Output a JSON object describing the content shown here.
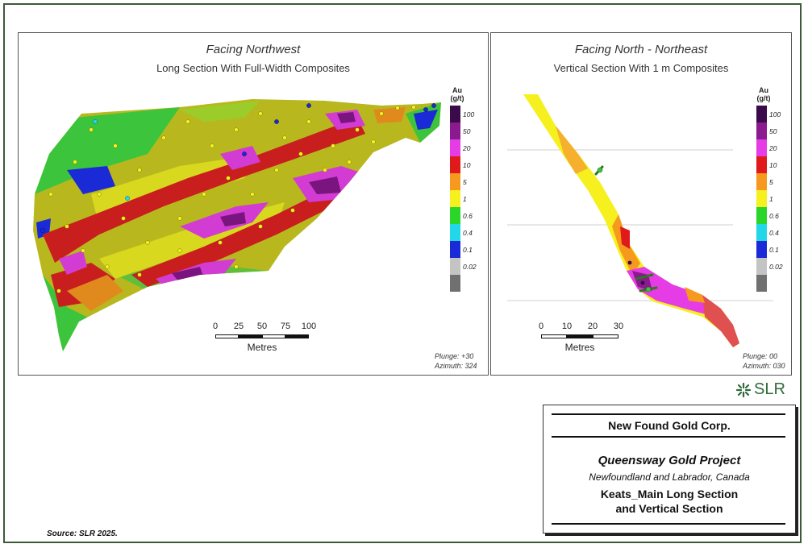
{
  "left_panel": {
    "title": "Facing Northwest",
    "subtitle": "Long Section With Full-Width Composites",
    "view_plunge": "Plunge: +30",
    "view_azimuth": "Azimuth: 324",
    "scale_ticks": [
      "0",
      "25",
      "50",
      "75",
      "100"
    ],
    "scale_unit": "Metres"
  },
  "right_panel": {
    "title": "Facing North - Northeast",
    "subtitle": "Vertical Section With 1 m Composites",
    "view_plunge": "Plunge: 00",
    "view_azimuth": "Azimuth: 030",
    "scale_ticks": [
      "0",
      "10",
      "20",
      "30"
    ],
    "scale_unit": "Metres"
  },
  "legend": {
    "title_line1": "Au",
    "title_line2": "(g/t)",
    "items": [
      {
        "label": "100",
        "color": "#3a0a4a"
      },
      {
        "label": "50",
        "color": "#8a1a8e"
      },
      {
        "label": "20",
        "color": "#e63ce6"
      },
      {
        "label": "10",
        "color": "#e01a1a"
      },
      {
        "label": "5",
        "color": "#f59a1e"
      },
      {
        "label": "1",
        "color": "#f5f01e"
      },
      {
        "label": "0.6",
        "color": "#2bd62b"
      },
      {
        "label": "0.4",
        "color": "#22d8e8"
      },
      {
        "label": "0.1",
        "color": "#1a2ad6"
      },
      {
        "label": "0.02",
        "color": "#c4c4c4"
      },
      {
        "label": "",
        "color": "#707070"
      }
    ]
  },
  "logo": {
    "text": "SLR",
    "color": "#2f6b3a"
  },
  "title_block": {
    "company": "New Found Gold Corp.",
    "project": "Queensway Gold Project",
    "location": "Newfoundland and Labrador, Canada",
    "figure_title_line1": "Keats_Main Long Section",
    "figure_title_line2": "and Vertical Section"
  },
  "source": "Source: SLR 2025."
}
